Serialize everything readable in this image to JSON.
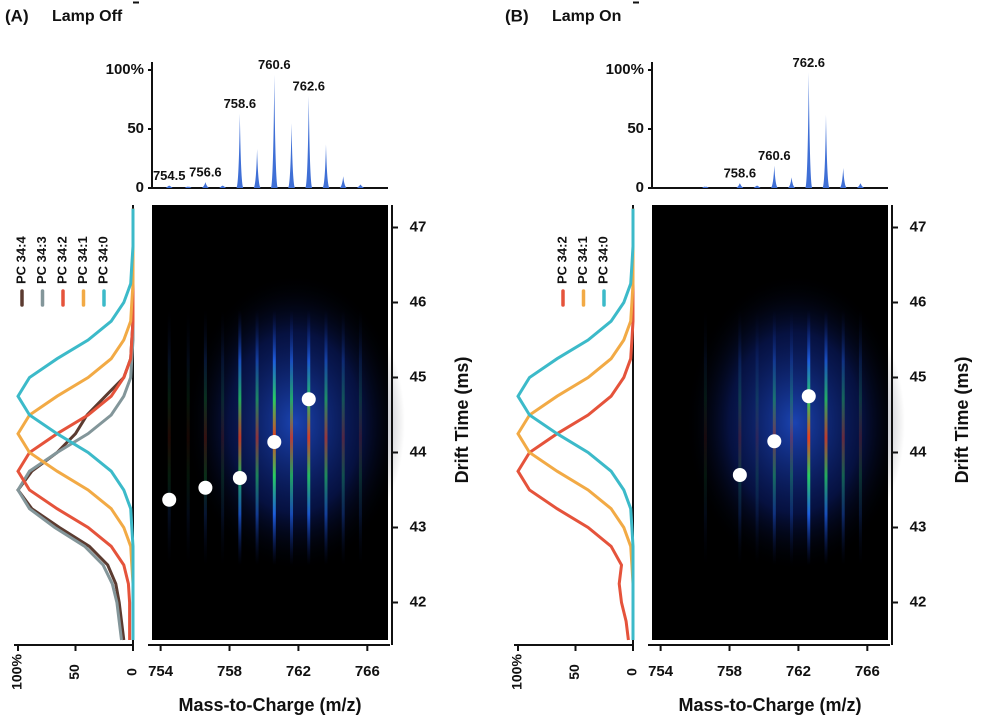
{
  "chart_data": [
    {
      "type": "bar",
      "panel": "(A)",
      "title": "Lamp Off",
      "color": "#3f6fd6",
      "x": [
        754.5,
        755.6,
        756.6,
        757.6,
        758.6,
        759.6,
        760.6,
        761.6,
        762.6,
        763.6,
        764.6,
        765.6
      ],
      "values": [
        2,
        1,
        5,
        2,
        63,
        33,
        96,
        55,
        78,
        37,
        10,
        3
      ],
      "peak_labels": [
        754.5,
        756.6,
        758.6,
        760.6,
        762.6
      ],
      "xlim": [
        753.5,
        767.2
      ],
      "ylim": [
        0,
        100
      ],
      "yticks": [
        0,
        50,
        {
          "value": 100,
          "label": "100%"
        }
      ]
    },
    {
      "type": "scatter",
      "x_label": "Mass-to-Charge (m/z)",
      "y_label": "Drift Time (ms)",
      "x": [
        754.5,
        756.6,
        758.6,
        760.6,
        762.6
      ],
      "values": [
        43.37,
        43.53,
        43.66,
        44.14,
        44.71
      ],
      "xlim": [
        753.5,
        767.2
      ],
      "xticks": [
        754,
        758,
        762,
        766
      ],
      "ylim": [
        41.5,
        47.3
      ],
      "yticks": [
        42,
        43,
        44,
        45,
        46,
        47
      ]
    },
    {
      "type": "line",
      "orientation": "horizontal",
      "y": [
        41.5,
        41.75,
        42,
        42.25,
        42.5,
        42.75,
        43,
        43.25,
        43.5,
        43.75,
        44,
        44.25,
        44.5,
        44.75,
        45,
        45.25,
        45.5,
        45.75,
        46,
        46.25,
        46.5,
        46.75,
        47,
        47.25
      ],
      "xlim": [
        100,
        0
      ],
      "xticks": [
        {
          "value": 100,
          "label": "100%"
        },
        50,
        0
      ],
      "ylim": [
        41.5,
        47.3
      ],
      "series": [
        {
          "name": "PC 34:4",
          "color": "#5b3b30",
          "values": [
            8,
            10,
            12,
            15,
            22,
            38,
            64,
            88,
            100,
            88,
            66,
            50,
            40,
            24,
            8,
            2,
            1,
            0,
            0,
            0,
            0,
            0,
            0,
            0
          ]
        },
        {
          "name": "PC 34:3",
          "color": "#83969a",
          "values": [
            10,
            12,
            14,
            18,
            26,
            42,
            68,
            90,
            100,
            90,
            66,
            39,
            19,
            8,
            2,
            1,
            0,
            0,
            0,
            0,
            0,
            0,
            0,
            0
          ]
        },
        {
          "name": "PC 34:2",
          "color": "#e5533b",
          "values": [
            3,
            3,
            3,
            4,
            8,
            19,
            39,
            66,
            90,
            100,
            90,
            66,
            39,
            19,
            8,
            2,
            1,
            0,
            0,
            0,
            0,
            0,
            0,
            0
          ]
        },
        {
          "name": "PC 34:1",
          "color": "#f2aa45",
          "values": [
            0,
            0,
            0,
            0,
            1,
            2,
            8,
            19,
            39,
            66,
            90,
            100,
            90,
            66,
            39,
            19,
            8,
            2,
            1,
            0,
            0,
            0,
            0,
            0
          ]
        },
        {
          "name": "PC 34:0",
          "color": "#3cbac9",
          "values": [
            0,
            0,
            0,
            0,
            0,
            0,
            1,
            2,
            8,
            19,
            39,
            66,
            90,
            100,
            90,
            66,
            39,
            19,
            8,
            2,
            1,
            0,
            0,
            0
          ]
        }
      ]
    },
    {
      "type": "bar",
      "panel": "(B)",
      "title": "Lamp On",
      "color": "#3f6fd6",
      "x": [
        756.6,
        758.6,
        759.6,
        760.6,
        761.6,
        762.6,
        763.6,
        764.6,
        765.6
      ],
      "values": [
        1,
        4,
        2,
        19,
        9,
        98,
        62,
        17,
        4
      ],
      "peak_labels": [
        758.6,
        760.6,
        762.6
      ],
      "xlim": [
        753.5,
        767.2
      ],
      "ylim": [
        0,
        100
      ],
      "yticks": [
        0,
        50,
        {
          "value": 100,
          "label": "100%"
        }
      ]
    },
    {
      "type": "scatter",
      "x_label": "Mass-to-Charge (m/z)",
      "y_label": "Drift Time (ms)",
      "x": [
        758.6,
        760.6,
        762.6
      ],
      "values": [
        43.7,
        44.15,
        44.75
      ],
      "xlim": [
        753.5,
        767.2
      ],
      "xticks": [
        754,
        758,
        762,
        766
      ],
      "ylim": [
        41.5,
        47.3
      ],
      "yticks": [
        42,
        43,
        44,
        45,
        46,
        47
      ]
    },
    {
      "type": "line",
      "orientation": "horizontal",
      "y": [
        41.5,
        41.75,
        42,
        42.25,
        42.5,
        42.75,
        43,
        43.25,
        43.5,
        43.75,
        44,
        44.25,
        44.5,
        44.75,
        45,
        45.25,
        45.5,
        45.75,
        46,
        46.25,
        46.5,
        46.75,
        47,
        47.25
      ],
      "xlim": [
        100,
        0
      ],
      "xticks": [
        {
          "value": 100,
          "label": "100%"
        },
        50,
        0
      ],
      "ylim": [
        41.5,
        47.3
      ],
      "series": [
        {
          "name": "PC 34:2",
          "color": "#e5533b",
          "values": [
            4,
            6,
            10,
            12,
            10,
            19,
            39,
            66,
            90,
            100,
            90,
            66,
            39,
            19,
            8,
            2,
            1,
            0,
            0,
            0,
            0,
            0,
            0,
            0
          ]
        },
        {
          "name": "PC 34:1",
          "color": "#f2aa45",
          "values": [
            0,
            0,
            0,
            0,
            1,
            2,
            8,
            19,
            39,
            66,
            90,
            100,
            90,
            66,
            39,
            19,
            8,
            2,
            1,
            0,
            0,
            0,
            0,
            0
          ]
        },
        {
          "name": "PC 34:0",
          "color": "#3cbac9",
          "values": [
            0,
            0,
            0,
            0,
            0,
            0,
            1,
            2,
            8,
            19,
            39,
            66,
            90,
            100,
            90,
            66,
            39,
            19,
            8,
            2,
            1,
            0,
            0,
            0
          ]
        }
      ]
    }
  ]
}
